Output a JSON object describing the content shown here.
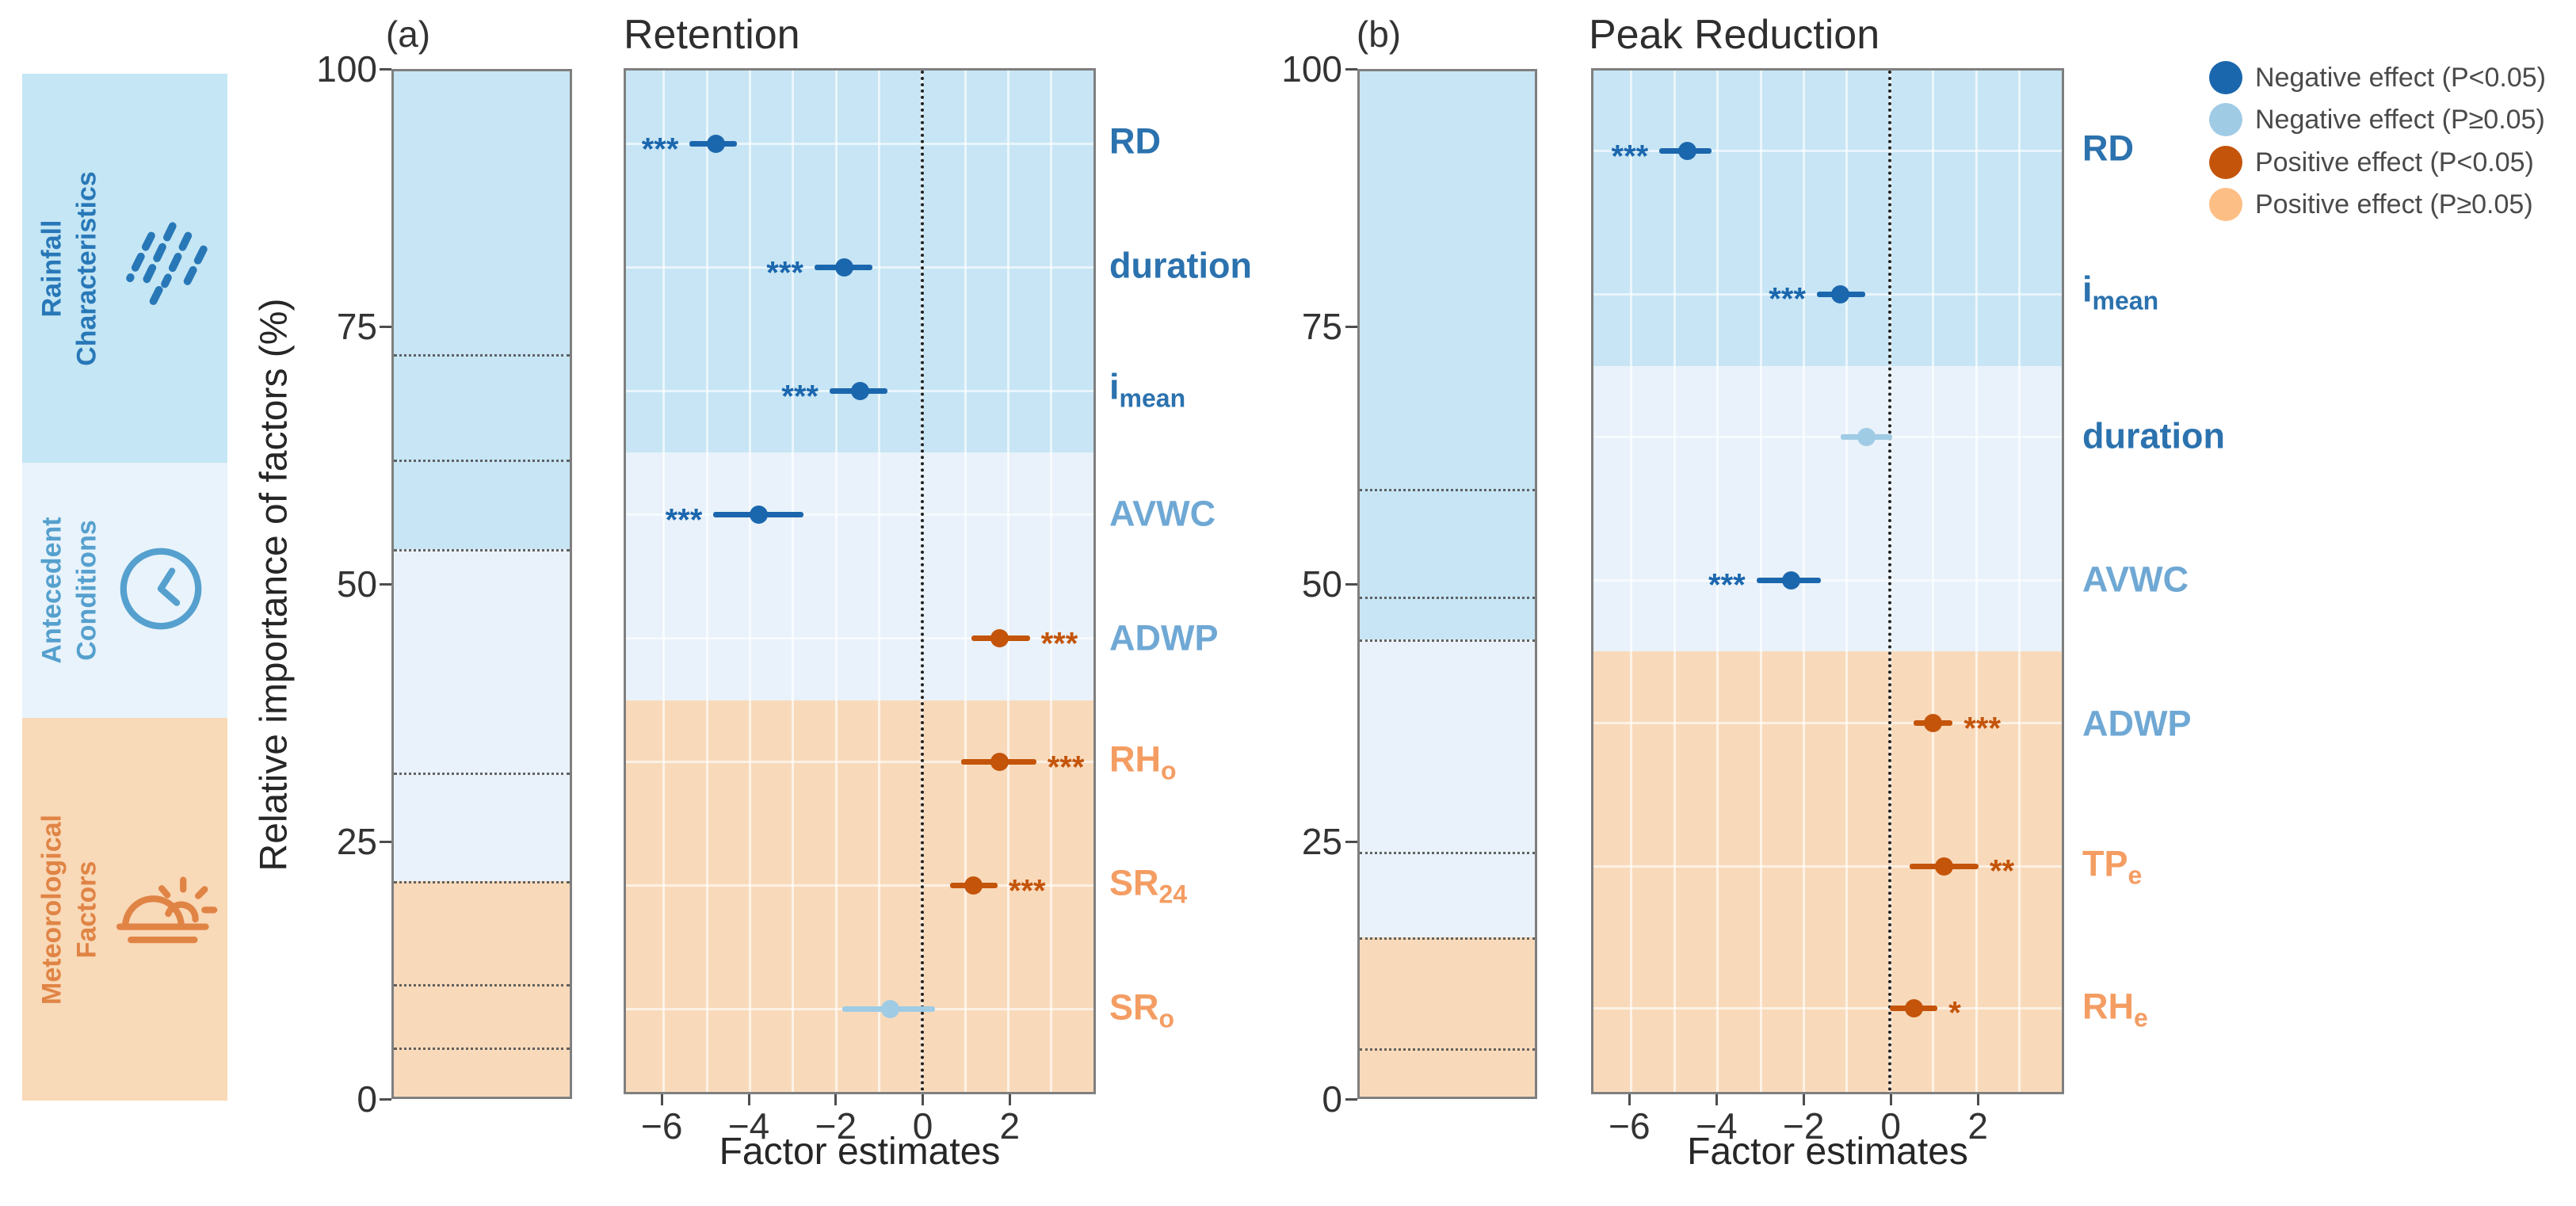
{
  "figure": {
    "ylabel": "Relative importance of factors (%)"
  },
  "colors": {
    "effect": {
      "negative_significant": "#1b67ae",
      "negative_nonsignificant": "#9fcbe5",
      "positive_significant": "#c4540a",
      "positive_nonsignificant": "#fdbe85"
    },
    "group_bands": {
      "rainfall": "#c7e5f4",
      "antecedent": "#e9f2fa",
      "meteorological": "#f8dabb"
    },
    "group_labels": {
      "rainfall": "#2b72ae",
      "antecedent": "#6fa8d4",
      "meteorological": "#f49d63"
    }
  },
  "sidebar": {
    "groups": [
      {
        "id": "rainfall",
        "lines": [
          "Rainfall",
          "Characteristics"
        ],
        "icon": "rain-icon",
        "bg": "#c5e6f4",
        "fg": "#2878b8"
      },
      {
        "id": "antecedent",
        "lines": [
          "Antecedent",
          "Conditions"
        ],
        "icon": "clock-icon",
        "bg": "#e9f3fb",
        "fg": "#55a0ce"
      },
      {
        "id": "meteorological",
        "lines": [
          "Meteorological",
          "Factors"
        ],
        "icon": "sunrise-icon",
        "bg": "#f8d9b8",
        "fg": "#e08445"
      }
    ]
  },
  "legend": {
    "items": [
      {
        "label": "Negative effect (P<0.05)",
        "color": "#1b67ae"
      },
      {
        "label": "Negative effect (P≥0.05)",
        "color": "#9fcbe5"
      },
      {
        "label": "Positive effect (P<0.05)",
        "color": "#c4540a"
      },
      {
        "label": "Positive effect (P≥0.05)",
        "color": "#fdbe85"
      }
    ]
  },
  "chart_data": [
    {
      "panel_letter": "(a)",
      "title": "Retention",
      "importance_bar": {
        "type": "stacked_bar",
        "ylim": [
          0,
          100
        ],
        "yticks": [
          100,
          75,
          50,
          25,
          0
        ],
        "segments": [
          {
            "factor": "RD",
            "group": "rainfall",
            "value": 27.6
          },
          {
            "factor": "duration",
            "group": "rainfall",
            "value": 10.3
          },
          {
            "factor": "i_mean",
            "group": "rainfall",
            "value": 8.7
          },
          {
            "factor": "AVWC",
            "group": "antecedent",
            "value": 21.8
          },
          {
            "factor": "ADWP",
            "group": "antecedent",
            "value": 10.6
          },
          {
            "factor": "RH_o",
            "group": "meteorological",
            "value": 10.0
          },
          {
            "factor": "SR_24",
            "group": "meteorological",
            "value": 6.2
          },
          {
            "factor": "SR_o",
            "group": "meteorological",
            "value": 4.8
          }
        ]
      },
      "forest_plot": {
        "type": "scatter",
        "xlabel": "Factor estimates",
        "xlim": [
          -6.88,
          3.98
        ],
        "xticks": [
          -6,
          -4,
          -2,
          0,
          2
        ],
        "band_boundaries_pct": [
          62.6,
          38.3
        ],
        "rows": [
          {
            "factor": "RD",
            "sub": "",
            "group": "rainfall",
            "y_pct": 92.8,
            "estimate": -4.8,
            "ci": [
              -5.4,
              -4.3
            ],
            "stars": "***",
            "effect": "negative_significant"
          },
          {
            "factor": "duration",
            "sub": "",
            "group": "rainfall",
            "y_pct": 80.7,
            "estimate": -1.8,
            "ci": [
              -2.5,
              -1.15
            ],
            "stars": "***",
            "effect": "negative_significant"
          },
          {
            "factor": "i",
            "sub": "mean",
            "group": "rainfall",
            "y_pct": 68.6,
            "estimate": -1.45,
            "ci": [
              -2.15,
              -0.8
            ],
            "stars": "***",
            "effect": "negative_significant"
          },
          {
            "factor": "AVWC",
            "sub": "",
            "group": "antecedent",
            "y_pct": 56.5,
            "estimate": -3.8,
            "ci": [
              -4.85,
              -2.75
            ],
            "stars": "***",
            "effect": "negative_significant"
          },
          {
            "factor": "ADWP",
            "sub": "",
            "group": "antecedent",
            "y_pct": 44.4,
            "estimate": 1.8,
            "ci": [
              1.15,
              2.5
            ],
            "stars": "***",
            "effect": "positive_significant"
          },
          {
            "factor": "RH",
            "sub": "o",
            "group": "meteorological",
            "y_pct": 32.3,
            "estimate": 1.8,
            "ci": [
              0.9,
              2.65
            ],
            "stars": "***",
            "effect": "positive_significant"
          },
          {
            "factor": "SR",
            "sub": "24",
            "group": "meteorological",
            "y_pct": 20.2,
            "estimate": 1.2,
            "ci": [
              0.65,
              1.75
            ],
            "stars": "***",
            "effect": "positive_significant"
          },
          {
            "factor": "SR",
            "sub": "o",
            "group": "meteorological",
            "y_pct": 8.1,
            "estimate": -0.75,
            "ci": [
              -1.85,
              0.3
            ],
            "stars": "",
            "effect": "negative_nonsignificant"
          }
        ]
      }
    },
    {
      "panel_letter": "(b)",
      "title": "Peak Reduction",
      "importance_bar": {
        "type": "stacked_bar",
        "ylim": [
          0,
          100
        ],
        "yticks": [
          100,
          75,
          50,
          25,
          0
        ],
        "segments": [
          {
            "factor": "RD",
            "group": "rainfall",
            "value": 40.7
          },
          {
            "factor": "i_mean",
            "group": "rainfall",
            "value": 10.5
          },
          {
            "factor": "duration",
            "group": "rainfall",
            "value": 4.2
          },
          {
            "factor": "AVWC",
            "group": "antecedent",
            "value": 20.7
          },
          {
            "factor": "ADWP",
            "group": "antecedent",
            "value": 8.4
          },
          {
            "factor": "TP_e",
            "group": "meteorological",
            "value": 10.8
          },
          {
            "factor": "RH_e",
            "group": "meteorological",
            "value": 4.7
          }
        ]
      },
      "forest_plot": {
        "type": "scatter",
        "xlabel": "Factor estimates",
        "xlim": [
          -6.88,
          3.98
        ],
        "xticks": [
          -6,
          -4,
          -2,
          0,
          2
        ],
        "band_boundaries_pct": [
          71.1,
          43.1
        ],
        "rows": [
          {
            "factor": "RD",
            "sub": "",
            "group": "rainfall",
            "y_pct": 92.1,
            "estimate": -4.7,
            "ci": [
              -5.35,
              -4.15
            ],
            "stars": "***",
            "effect": "negative_significant"
          },
          {
            "factor": "i",
            "sub": "mean",
            "group": "rainfall",
            "y_pct": 78.1,
            "estimate": -1.15,
            "ci": [
              -1.7,
              -0.58
            ],
            "stars": "***",
            "effect": "negative_significant"
          },
          {
            "factor": "duration",
            "sub": "",
            "group": "rainfall",
            "y_pct": 64.1,
            "estimate": -0.55,
            "ci": [
              -1.15,
              0.05
            ],
            "stars": "",
            "effect": "negative_nonsignificant"
          },
          {
            "factor": "AVWC",
            "sub": "",
            "group": "antecedent",
            "y_pct": 50.1,
            "estimate": -2.3,
            "ci": [
              -3.1,
              -1.6
            ],
            "stars": "***",
            "effect": "negative_significant"
          },
          {
            "factor": "ADWP",
            "sub": "",
            "group": "antecedent",
            "y_pct": 36.1,
            "estimate": 1.0,
            "ci": [
              0.55,
              1.45
            ],
            "stars": "***",
            "effect": "positive_significant"
          },
          {
            "factor": "TP",
            "sub": "e",
            "group": "meteorological",
            "y_pct": 22.1,
            "estimate": 1.25,
            "ci": [
              0.45,
              2.05
            ],
            "stars": "**",
            "effect": "positive_significant"
          },
          {
            "factor": "RH",
            "sub": "e",
            "group": "meteorological",
            "y_pct": 8.2,
            "estimate": 0.55,
            "ci": [
              0.0,
              1.1
            ],
            "stars": "*",
            "effect": "positive_significant"
          }
        ]
      }
    }
  ]
}
